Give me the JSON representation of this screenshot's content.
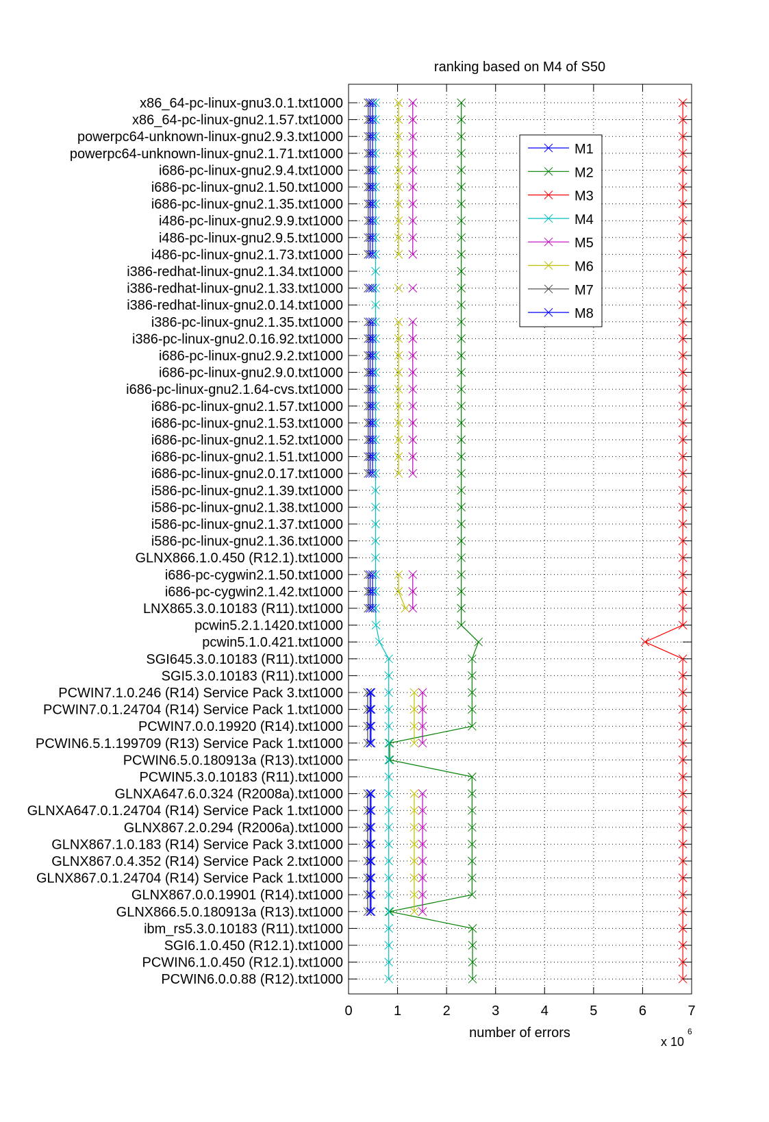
{
  "chart_data": {
    "type": "line",
    "orientation": "horizontal",
    "title": "ranking based on M4 of S50",
    "xlabel": "number of errors",
    "x_multiplier_label": "x 10",
    "x_multiplier_exponent": "6",
    "xlim": [
      0,
      7
    ],
    "xticks": [
      "0",
      "1",
      "2",
      "3",
      "4",
      "5",
      "6",
      "7"
    ],
    "grid": true,
    "legend_position": "top-right",
    "categories": [
      "x86_64-pc-linux-gnu3.0.1.txt1000",
      "x86_64-pc-linux-gnu2.1.57.txt1000",
      "powerpc64-unknown-linux-gnu2.9.3.txt1000",
      "powerpc64-unknown-linux-gnu2.1.71.txt1000",
      "i686-pc-linux-gnu2.9.4.txt1000",
      "i686-pc-linux-gnu2.1.50.txt1000",
      "i686-pc-linux-gnu2.1.35.txt1000",
      "i486-pc-linux-gnu2.9.9.txt1000",
      "i486-pc-linux-gnu2.9.5.txt1000",
      "i486-pc-linux-gnu2.1.73.txt1000",
      "i386-redhat-linux-gnu2.1.34.txt1000",
      "i386-redhat-linux-gnu2.1.33.txt1000",
      "i386-redhat-linux-gnu2.0.14.txt1000",
      "i386-pc-linux-gnu2.1.35.txt1000",
      "i386-pc-linux-gnu2.0.16.92.txt1000",
      "i686-pc-linux-gnu2.9.2.txt1000",
      "i686-pc-linux-gnu2.9.0.txt1000",
      "i686-pc-linux-gnu2.1.64-cvs.txt1000",
      "i686-pc-linux-gnu2.1.57.txt1000",
      "i686-pc-linux-gnu2.1.53.txt1000",
      "i686-pc-linux-gnu2.1.52.txt1000",
      "i686-pc-linux-gnu2.1.51.txt1000",
      "i686-pc-linux-gnu2.0.17.txt1000",
      "i586-pc-linux-gnu2.1.39.txt1000",
      "i586-pc-linux-gnu2.1.38.txt1000",
      "i586-pc-linux-gnu2.1.37.txt1000",
      "i586-pc-linux-gnu2.1.36.txt1000",
      "GLNX866.1.0.450 (R12.1).txt1000",
      "i686-pc-cygwin2.1.50.txt1000",
      "i686-pc-cygwin2.1.42.txt1000",
      "LNX865.3.0.10183 (R11).txt1000",
      "pcwin5.2.1.1420.txt1000",
      "pcwin5.1.0.421.txt1000",
      "SGI645.3.0.10183 (R11).txt1000",
      "SGI5.3.0.10183 (R11).txt1000",
      "PCWIN7.1.0.246 (R14) Service Pack 3.txt1000",
      "PCWIN7.0.1.24704 (R14) Service Pack 1.txt1000",
      "PCWIN7.0.0.19920 (R14).txt1000",
      "PCWIN6.5.1.199709 (R13) Service Pack 1.txt1000",
      "PCWIN6.5.0.180913a (R13).txt1000",
      "PCWIN5.3.0.10183 (R11).txt1000",
      "GLNXA647.6.0.324 (R2008a).txt1000",
      "GLNXA647.0.1.24704 (R14) Service Pack 1.txt1000",
      "GLNX867.2.0.294 (R2006a).txt1000",
      "GLNX867.1.0.183 (R14) Service Pack 3.txt1000",
      "GLNX867.0.4.352 (R14) Service Pack 2.txt1000",
      "GLNX867.0.1.24704 (R14) Service Pack 1.txt1000",
      "GLNX867.0.0.19901 (R14).txt1000",
      "GLNX866.5.0.180913a (R13).txt1000",
      "ibm_rs5.3.0.10183 (R11).txt1000",
      "SGI6.1.0.450 (R12.1).txt1000",
      "PCWIN6.1.0.450 (R12.1).txt1000",
      "PCWIN6.0.0.88 (R12).txt1000"
    ],
    "series": [
      {
        "name": "M1",
        "color": "#0000ff",
        "values": [
          0.44,
          0.44,
          0.44,
          0.44,
          0.44,
          0.44,
          0.44,
          0.44,
          0.44,
          0.44,
          null,
          0.44,
          null,
          0.44,
          0.44,
          0.44,
          0.44,
          0.44,
          0.44,
          0.44,
          0.44,
          0.44,
          0.44,
          null,
          null,
          null,
          null,
          null,
          0.44,
          0.44,
          0.44,
          null,
          null,
          null,
          null,
          0.46,
          0.46,
          0.46,
          0.46,
          null,
          null,
          0.46,
          0.46,
          0.46,
          0.46,
          0.46,
          0.46,
          0.46,
          0.46,
          null,
          null,
          null,
          null
        ]
      },
      {
        "name": "M2",
        "color": "#008000",
        "values": [
          2.3,
          2.3,
          2.3,
          2.3,
          2.3,
          2.3,
          2.3,
          2.3,
          2.3,
          2.3,
          2.3,
          2.3,
          2.3,
          2.3,
          2.3,
          2.3,
          2.3,
          2.3,
          2.3,
          2.3,
          2.3,
          2.3,
          2.3,
          2.3,
          2.3,
          2.3,
          2.3,
          2.3,
          2.3,
          2.3,
          2.3,
          2.3,
          2.65,
          2.52,
          2.52,
          2.52,
          2.52,
          2.52,
          0.84,
          0.84,
          2.52,
          2.52,
          2.52,
          2.52,
          2.52,
          2.52,
          2.52,
          2.52,
          0.84,
          2.53,
          2.53,
          2.53,
          2.53
        ]
      },
      {
        "name": "M3",
        "color": "#ff0000",
        "values": [
          6.82,
          6.82,
          6.82,
          6.82,
          6.82,
          6.82,
          6.82,
          6.82,
          6.82,
          6.82,
          6.82,
          6.82,
          6.82,
          6.82,
          6.82,
          6.82,
          6.82,
          6.82,
          6.82,
          6.82,
          6.82,
          6.82,
          6.82,
          6.82,
          6.82,
          6.82,
          6.82,
          6.82,
          6.82,
          6.82,
          6.82,
          6.82,
          6.05,
          6.82,
          6.82,
          6.82,
          6.82,
          6.82,
          6.82,
          6.82,
          6.82,
          6.82,
          6.82,
          6.82,
          6.82,
          6.82,
          6.82,
          6.82,
          6.82,
          6.82,
          6.82,
          6.82,
          6.82
        ]
      },
      {
        "name": "M4",
        "color": "#00bfbf",
        "values": [
          0.55,
          0.55,
          0.55,
          0.55,
          0.55,
          0.55,
          0.55,
          0.55,
          0.55,
          0.55,
          0.55,
          0.55,
          0.55,
          0.55,
          0.55,
          0.55,
          0.55,
          0.55,
          0.55,
          0.55,
          0.55,
          0.55,
          0.55,
          0.55,
          0.55,
          0.55,
          0.55,
          0.55,
          0.55,
          0.55,
          0.55,
          0.56,
          0.63,
          0.82,
          0.82,
          0.82,
          0.82,
          0.82,
          0.82,
          0.82,
          0.82,
          0.82,
          0.82,
          0.82,
          0.82,
          0.82,
          0.82,
          0.82,
          0.82,
          0.82,
          0.82,
          0.82,
          0.82
        ]
      },
      {
        "name": "M5",
        "color": "#bf00bf",
        "values": [
          1.31,
          1.31,
          1.31,
          1.31,
          1.31,
          1.31,
          1.31,
          1.31,
          1.31,
          1.31,
          null,
          1.31,
          null,
          1.31,
          1.31,
          1.31,
          1.31,
          1.31,
          1.31,
          1.31,
          1.31,
          1.31,
          1.31,
          null,
          null,
          null,
          null,
          null,
          1.31,
          1.31,
          1.31,
          null,
          null,
          null,
          null,
          1.51,
          1.51,
          1.51,
          1.51,
          null,
          null,
          1.51,
          1.51,
          1.51,
          1.51,
          1.51,
          1.51,
          1.51,
          1.51,
          null,
          null,
          null,
          null
        ]
      },
      {
        "name": "M6",
        "color": "#bfbf00",
        "values": [
          1.02,
          1.02,
          1.02,
          1.02,
          1.02,
          1.02,
          1.02,
          1.02,
          1.02,
          1.02,
          null,
          1.02,
          null,
          1.02,
          1.02,
          1.02,
          1.02,
          1.02,
          1.02,
          1.02,
          1.02,
          1.02,
          1.02,
          null,
          null,
          null,
          null,
          null,
          1.02,
          1.02,
          1.16,
          null,
          null,
          null,
          null,
          1.34,
          1.34,
          1.34,
          1.34,
          null,
          null,
          1.34,
          1.34,
          1.34,
          1.34,
          1.34,
          1.34,
          1.34,
          1.34,
          null,
          null,
          null,
          null
        ]
      },
      {
        "name": "M7",
        "color": "#404040",
        "values": [
          0.4,
          0.4,
          0.4,
          0.4,
          0.4,
          0.4,
          0.4,
          0.4,
          0.4,
          0.4,
          null,
          0.4,
          null,
          0.4,
          0.4,
          0.4,
          0.4,
          0.4,
          0.4,
          0.4,
          0.4,
          0.4,
          0.4,
          null,
          null,
          null,
          null,
          null,
          0.4,
          0.4,
          0.4,
          null,
          null,
          null,
          null,
          0.39,
          0.39,
          0.39,
          0.39,
          null,
          null,
          0.39,
          0.39,
          0.39,
          0.39,
          0.39,
          0.39,
          0.39,
          0.39,
          null,
          null,
          null,
          null
        ]
      },
      {
        "name": "M8",
        "color": "#0000ff",
        "values": [
          0.49,
          0.49,
          0.49,
          0.49,
          0.49,
          0.49,
          0.49,
          0.49,
          0.49,
          0.49,
          null,
          0.49,
          null,
          0.49,
          0.49,
          0.49,
          0.49,
          0.49,
          0.49,
          0.49,
          0.49,
          0.49,
          0.49,
          null,
          null,
          null,
          null,
          null,
          0.49,
          0.49,
          0.49,
          null,
          null,
          null,
          null,
          0.44,
          0.44,
          0.44,
          0.44,
          null,
          null,
          0.44,
          0.44,
          0.44,
          0.44,
          0.44,
          0.44,
          0.44,
          0.44,
          null,
          null,
          null,
          null
        ]
      }
    ]
  }
}
